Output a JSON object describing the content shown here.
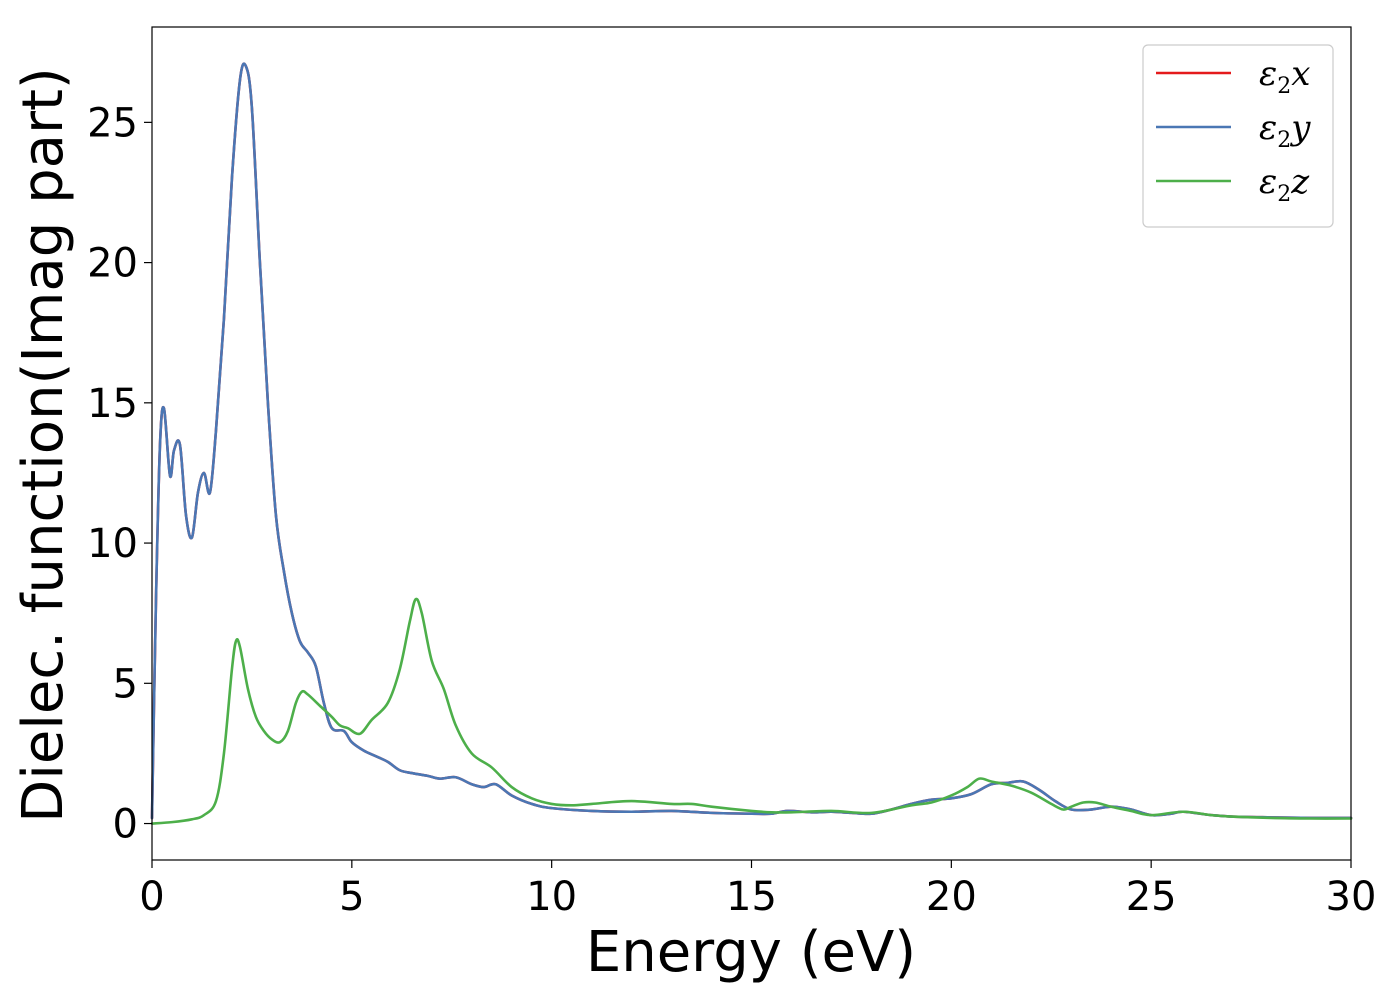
{
  "chart_data": {
    "type": "line",
    "title": "",
    "xlabel": "Energy (eV)",
    "ylabel": "Dielec. function(Imag part)",
    "xlim": [
      0,
      30
    ],
    "ylim": [
      -1.3,
      28.4
    ],
    "xticks": [
      0,
      5,
      10,
      15,
      20,
      25,
      30
    ],
    "yticks": [
      0,
      5,
      10,
      15,
      20,
      25
    ],
    "grid": false,
    "legend_position": "top-right",
    "series": [
      {
        "name": "ε2x",
        "label_symbol": "ε",
        "label_sub": "2",
        "label_suffix": "x",
        "color": "#e41a1c",
        "x": [
          0,
          0.1,
          0.2,
          0.3,
          0.45,
          0.55,
          0.7,
          0.85,
          1.0,
          1.15,
          1.3,
          1.45,
          1.6,
          1.8,
          2.0,
          2.2,
          2.35,
          2.5,
          2.7,
          2.9,
          3.1,
          3.3,
          3.5,
          3.7,
          3.9,
          4.1,
          4.3,
          4.5,
          4.8,
          5.0,
          5.3,
          5.6,
          5.9,
          6.2,
          6.5,
          6.9,
          7.2,
          7.6,
          8.0,
          8.3,
          8.6,
          9.0,
          9.5,
          10,
          11,
          12,
          13,
          14,
          15,
          15.5,
          15.9,
          16.5,
          17,
          17.5,
          18,
          18.5,
          19,
          19.5,
          20,
          20.5,
          21,
          21.4,
          21.8,
          22.2,
          22.6,
          23,
          23.5,
          24,
          24.5,
          25,
          25.5,
          25.8,
          26.5,
          27,
          28,
          29,
          30
        ],
        "values": [
          0.2,
          8.0,
          13.5,
          14.8,
          12.4,
          13.3,
          13.5,
          11.0,
          10.2,
          11.8,
          12.5,
          11.8,
          14.0,
          18.0,
          23.0,
          26.5,
          27.0,
          25.5,
          20.0,
          15.0,
          11.0,
          9.0,
          7.5,
          6.5,
          6.1,
          5.6,
          4.3,
          3.4,
          3.3,
          2.9,
          2.6,
          2.4,
          2.2,
          1.9,
          1.8,
          1.7,
          1.6,
          1.65,
          1.4,
          1.3,
          1.4,
          1.0,
          0.7,
          0.55,
          0.45,
          0.42,
          0.45,
          0.38,
          0.35,
          0.35,
          0.45,
          0.4,
          0.42,
          0.38,
          0.35,
          0.5,
          0.7,
          0.85,
          0.9,
          1.05,
          1.4,
          1.45,
          1.5,
          1.2,
          0.8,
          0.5,
          0.5,
          0.6,
          0.5,
          0.3,
          0.35,
          0.42,
          0.3,
          0.25,
          0.22,
          0.2,
          0.2
        ]
      },
      {
        "name": "ε2y",
        "label_symbol": "ε",
        "label_sub": "2",
        "label_suffix": "y",
        "color": "#4a77b4",
        "x": [
          0,
          0.1,
          0.2,
          0.3,
          0.45,
          0.55,
          0.7,
          0.85,
          1.0,
          1.15,
          1.3,
          1.45,
          1.6,
          1.8,
          2.0,
          2.2,
          2.35,
          2.5,
          2.7,
          2.9,
          3.1,
          3.3,
          3.5,
          3.7,
          3.9,
          4.1,
          4.3,
          4.5,
          4.8,
          5.0,
          5.3,
          5.6,
          5.9,
          6.2,
          6.5,
          6.9,
          7.2,
          7.6,
          8.0,
          8.3,
          8.6,
          9.0,
          9.5,
          10,
          11,
          12,
          13,
          14,
          15,
          15.5,
          15.9,
          16.5,
          17,
          17.5,
          18,
          18.5,
          19,
          19.5,
          20,
          20.5,
          21,
          21.4,
          21.8,
          22.2,
          22.6,
          23,
          23.5,
          24,
          24.5,
          25,
          25.5,
          25.8,
          26.5,
          27,
          28,
          29,
          30
        ],
        "values": [
          0.2,
          8.0,
          13.5,
          14.8,
          12.4,
          13.3,
          13.5,
          11.0,
          10.2,
          11.8,
          12.5,
          11.8,
          14.0,
          18.0,
          23.0,
          26.5,
          27.0,
          25.5,
          20.0,
          15.0,
          11.0,
          9.0,
          7.5,
          6.5,
          6.1,
          5.6,
          4.3,
          3.4,
          3.3,
          2.9,
          2.6,
          2.4,
          2.2,
          1.9,
          1.8,
          1.7,
          1.6,
          1.65,
          1.4,
          1.3,
          1.4,
          1.0,
          0.7,
          0.55,
          0.45,
          0.42,
          0.45,
          0.38,
          0.35,
          0.35,
          0.45,
          0.4,
          0.42,
          0.38,
          0.35,
          0.5,
          0.7,
          0.85,
          0.9,
          1.05,
          1.4,
          1.45,
          1.5,
          1.2,
          0.8,
          0.5,
          0.5,
          0.6,
          0.5,
          0.3,
          0.35,
          0.42,
          0.3,
          0.25,
          0.22,
          0.2,
          0.2
        ]
      },
      {
        "name": "ε2z",
        "label_symbol": "ε",
        "label_sub": "2",
        "label_suffix": "z",
        "color": "#4daf4a",
        "x": [
          0,
          0.5,
          1.0,
          1.3,
          1.6,
          1.8,
          2.0,
          2.1,
          2.2,
          2.4,
          2.6,
          2.8,
          3.0,
          3.2,
          3.4,
          3.6,
          3.75,
          3.9,
          4.2,
          4.5,
          4.7,
          4.9,
          5.2,
          5.5,
          5.9,
          6.2,
          6.45,
          6.6,
          6.75,
          7.0,
          7.3,
          7.6,
          8.0,
          8.5,
          9.0,
          9.5,
          10,
          10.5,
          11,
          12,
          13,
          13.5,
          14,
          15,
          15.5,
          16,
          17,
          18,
          19,
          19.5,
          20,
          20.4,
          20.7,
          21.0,
          21.5,
          22,
          22.5,
          22.8,
          23,
          23.3,
          23.6,
          24,
          24.5,
          25,
          25.8,
          26.5,
          27,
          28,
          29,
          30
        ],
        "values": [
          0.0,
          0.05,
          0.15,
          0.3,
          0.8,
          2.5,
          5.5,
          6.5,
          6.3,
          4.8,
          3.8,
          3.3,
          3.0,
          2.9,
          3.3,
          4.3,
          4.7,
          4.6,
          4.2,
          3.8,
          3.5,
          3.4,
          3.2,
          3.7,
          4.3,
          5.5,
          7.2,
          8.0,
          7.5,
          5.8,
          4.8,
          3.5,
          2.5,
          2.0,
          1.3,
          0.9,
          0.7,
          0.65,
          0.7,
          0.8,
          0.7,
          0.7,
          0.6,
          0.45,
          0.4,
          0.4,
          0.45,
          0.38,
          0.65,
          0.75,
          1.0,
          1.3,
          1.6,
          1.5,
          1.35,
          1.1,
          0.7,
          0.5,
          0.6,
          0.75,
          0.75,
          0.6,
          0.45,
          0.3,
          0.42,
          0.3,
          0.25,
          0.2,
          0.18,
          0.18
        ]
      }
    ]
  }
}
